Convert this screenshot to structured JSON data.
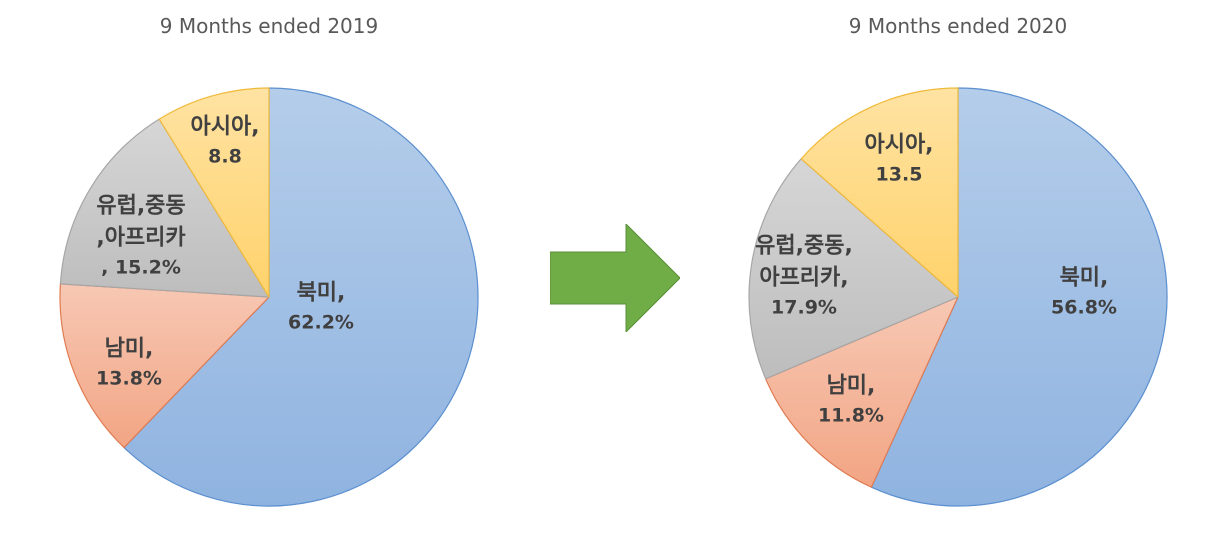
{
  "colors": {
    "north_america": "#9DC0E6",
    "south_america": "#F4B39A",
    "europe_me_africa": "#C8C8C8",
    "asia": "#FFD980",
    "arrow": "#70AD47"
  },
  "chart_data": [
    {
      "type": "pie",
      "title": "9 Months ended 2019",
      "slices": [
        {
          "key": "north_america",
          "name": "북미,",
          "value": 62.2,
          "value_label": "62.2%"
        },
        {
          "key": "south_america",
          "name": "남미,",
          "value": 13.8,
          "value_label": "13.8%"
        },
        {
          "key": "europe_me_africa",
          "name": "유럽,중동,아프리카,",
          "name_lines": [
            "유럽,중동",
            ",아프리카"
          ],
          "value": 15.2,
          "value_label": ", 15.2%"
        },
        {
          "key": "asia",
          "name": "아시아,",
          "value": 8.8,
          "value_label": "8.8"
        }
      ]
    },
    {
      "type": "pie",
      "title": "9 Months ended 2020",
      "slices": [
        {
          "key": "north_america",
          "name": "북미,",
          "value": 56.8,
          "value_label": "56.8%"
        },
        {
          "key": "south_america",
          "name": "남미,",
          "value": 11.8,
          "value_label": "11.8%"
        },
        {
          "key": "europe_me_africa",
          "name": "유럽,중동,아프리카,",
          "name_lines": [
            "유럽,중동,",
            "아프리카,"
          ],
          "value": 17.9,
          "value_label": "17.9%"
        },
        {
          "key": "asia",
          "name": "아시아,",
          "value": 13.5,
          "value_label": "13.5"
        }
      ]
    }
  ]
}
